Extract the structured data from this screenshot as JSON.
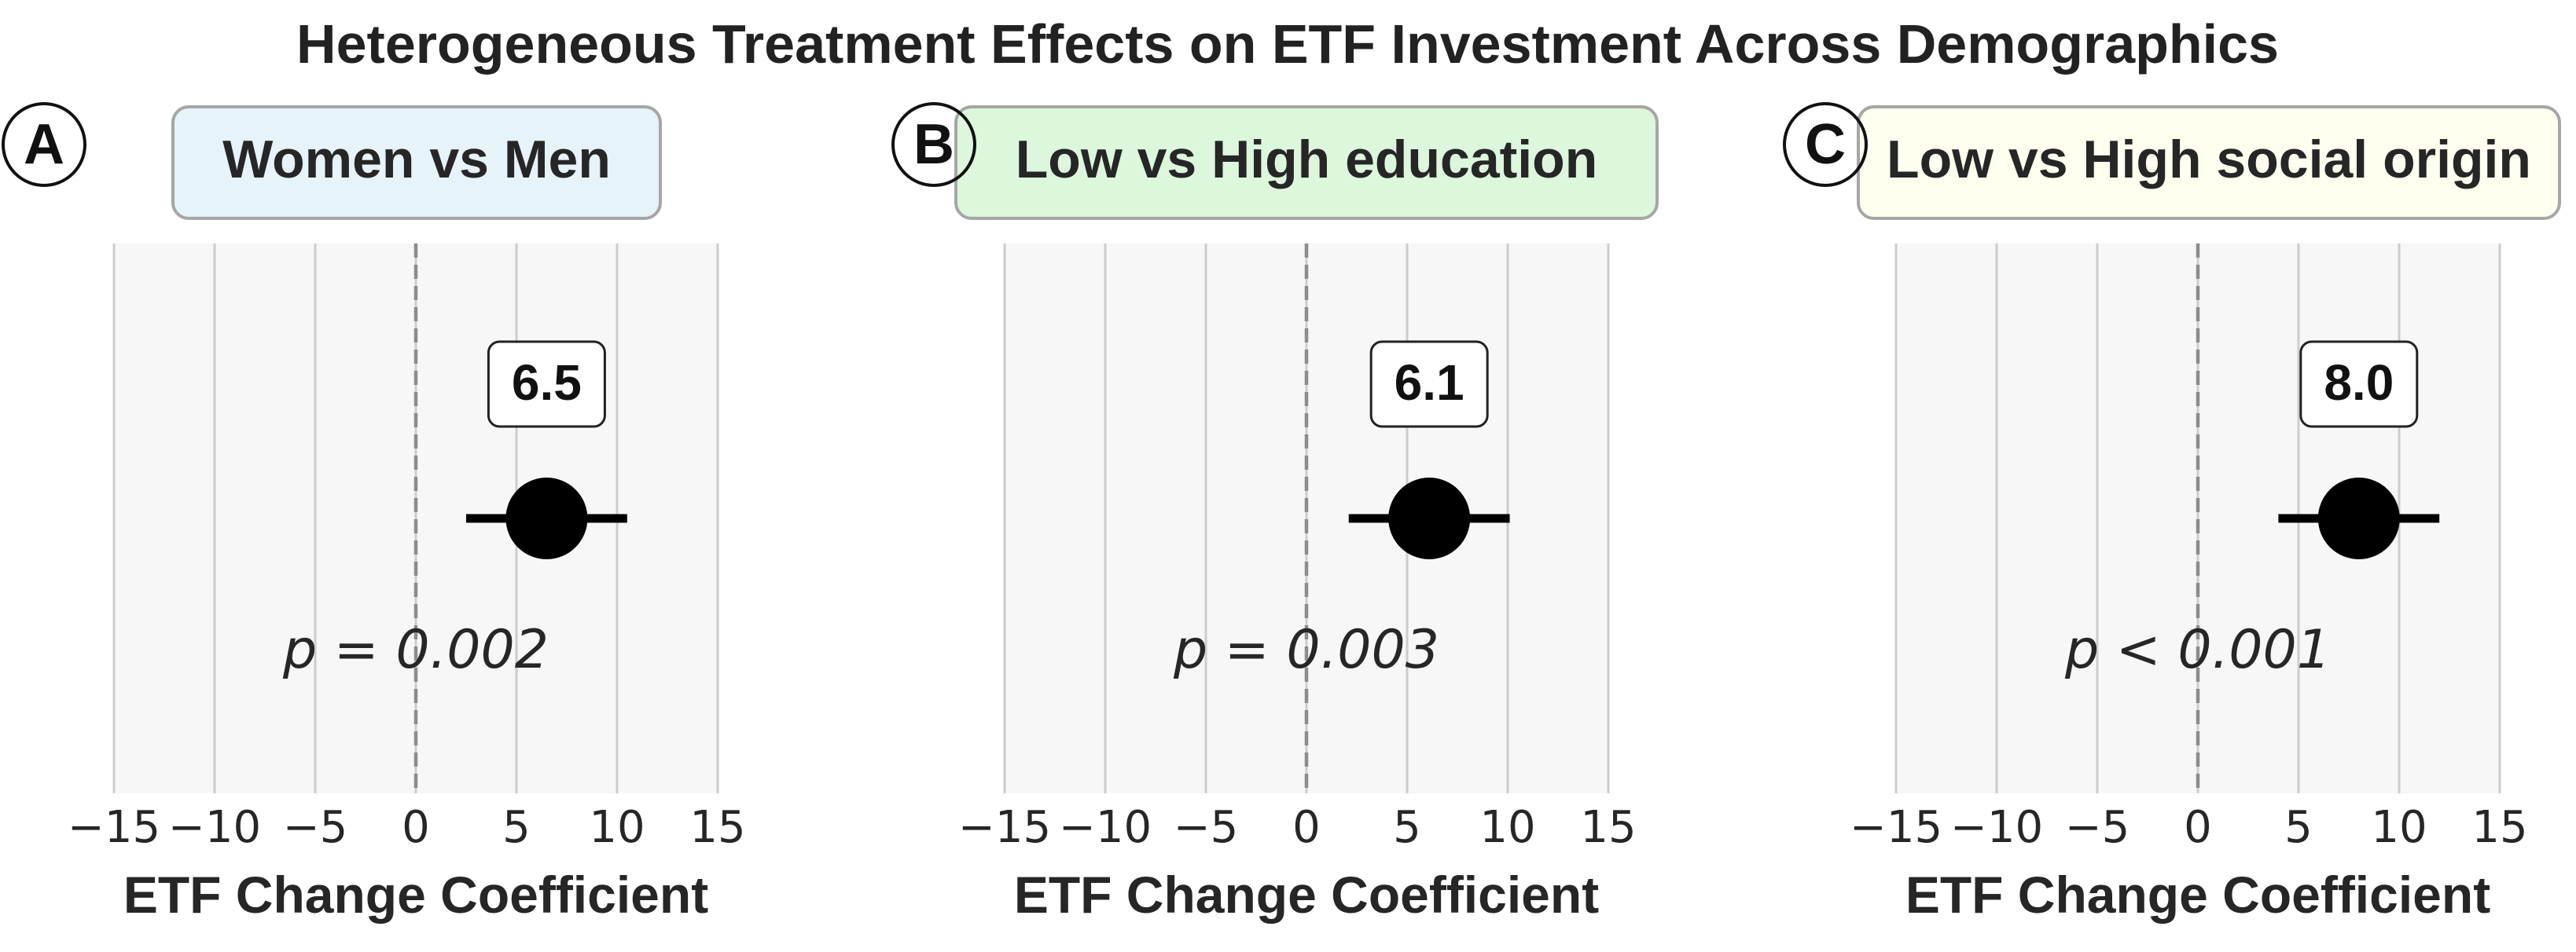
{
  "suptitle": "Heterogeneous Treatment Effects on ETF Investment Across Demographics",
  "chart_data": [
    {
      "type": "scatter",
      "panel_label": "A",
      "title": "Women vs Men",
      "title_bg": "#e6f3f8",
      "estimate": 6.5,
      "ci": [
        2.5,
        10.5
      ],
      "value_label": "6.5",
      "p_text": "p = 0.002",
      "xlabel": "ETF Change Coefficient",
      "xlim": [
        -15,
        15
      ],
      "xticks": [
        -15,
        -10,
        -5,
        0,
        5,
        10,
        15
      ],
      "xtick_labels": [
        "−15",
        "−10",
        "−5",
        "0",
        "5",
        "10",
        "15"
      ],
      "reference_line": 0,
      "grid": true
    },
    {
      "type": "scatter",
      "panel_label": "B",
      "title": "Low vs High education",
      "title_bg": "#dcf7dc",
      "estimate": 6.1,
      "ci": [
        2.1,
        10.1
      ],
      "value_label": "6.1",
      "p_text": "p = 0.003",
      "xlabel": "ETF Change Coefficient",
      "xlim": [
        -15,
        15
      ],
      "xticks": [
        -15,
        -10,
        -5,
        0,
        5,
        10,
        15
      ],
      "xtick_labels": [
        "−15",
        "−10",
        "−5",
        "0",
        "5",
        "10",
        "15"
      ],
      "reference_line": 0,
      "grid": true
    },
    {
      "type": "scatter",
      "panel_label": "C",
      "title": "Low vs High social origin",
      "title_bg": "#fffff0",
      "estimate": 8.0,
      "ci": [
        4.0,
        12.0
      ],
      "value_label": "8.0",
      "p_text": "p < 0.001",
      "xlabel": "ETF Change Coefficient",
      "xlim": [
        -15,
        15
      ],
      "xticks": [
        -15,
        -10,
        -5,
        0,
        5,
        10,
        15
      ],
      "xtick_labels": [
        "−15",
        "−10",
        "−5",
        "0",
        "5",
        "10",
        "15"
      ],
      "reference_line": 0,
      "grid": true
    }
  ]
}
